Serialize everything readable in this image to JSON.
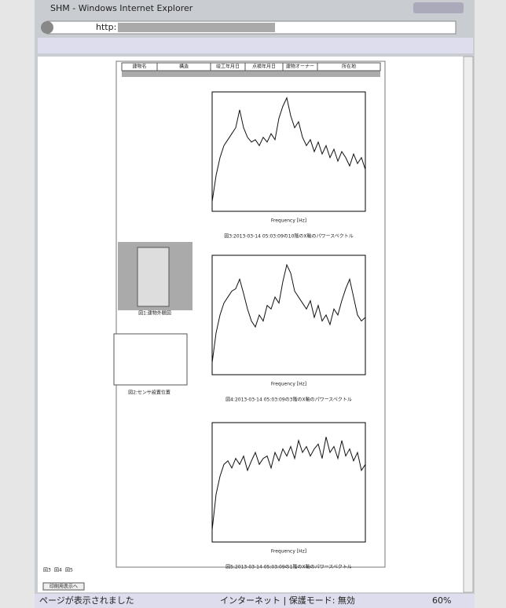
{
  "window": {
    "title": "SHM - Windows Internet Explorer",
    "address": "http:"
  },
  "table": {
    "headers": [
      "建物名",
      "構造",
      "竣工年月日",
      "点検年月日",
      "建物オーナー",
      "所在地"
    ]
  },
  "figures": [
    {
      "caption": "図1:建物外観図"
    },
    {
      "caption": "図2:センサ設置位置"
    }
  ],
  "chart_data": [
    {
      "type": "line",
      "caption": "図3:2013-03-14 05:03:09の10階のX軸のパワースペクトル",
      "x_label": "Frequency [Hz]",
      "ylim": [
        0,
        100
      ],
      "values": [
        8,
        30,
        45,
        55,
        60,
        65,
        70,
        85,
        70,
        62,
        58,
        60,
        55,
        62,
        58,
        65,
        60,
        78,
        88,
        95,
        80,
        70,
        75,
        62,
        55,
        60,
        50,
        58,
        48,
        55,
        45,
        52,
        42,
        50,
        45,
        38,
        48,
        40,
        45,
        35
      ]
    },
    {
      "type": "line",
      "caption": "図4:2013-03-14 05:03:09の3階のX軸のパワースペクトル",
      "x_label": "Frequency [Hz]",
      "ylim": [
        0,
        100
      ],
      "values": [
        10,
        35,
        50,
        60,
        65,
        70,
        72,
        80,
        68,
        55,
        45,
        40,
        50,
        45,
        58,
        55,
        65,
        60,
        78,
        92,
        85,
        70,
        65,
        60,
        55,
        62,
        48,
        58,
        45,
        50,
        42,
        55,
        50,
        62,
        72,
        80,
        65,
        50,
        45,
        48
      ]
    },
    {
      "type": "line",
      "caption": "図5:2013-03-14 05:03:09の1階のX軸のパワースペクトル",
      "x_label": "Frequency [Hz]",
      "ylim": [
        0,
        100
      ],
      "values": [
        10,
        40,
        55,
        65,
        68,
        62,
        70,
        65,
        72,
        60,
        68,
        75,
        65,
        70,
        72,
        62,
        75,
        68,
        78,
        72,
        80,
        70,
        85,
        75,
        80,
        72,
        78,
        82,
        70,
        88,
        75,
        80,
        70,
        85,
        72,
        78,
        68,
        75,
        60,
        65
      ]
    }
  ],
  "links": [
    "図3",
    "図4",
    "図5"
  ],
  "button": "印刷用表示へ",
  "status": {
    "message": "ページが表示されました",
    "zone": "インターネット | 保護モード: 無効",
    "zoom": "60%"
  }
}
